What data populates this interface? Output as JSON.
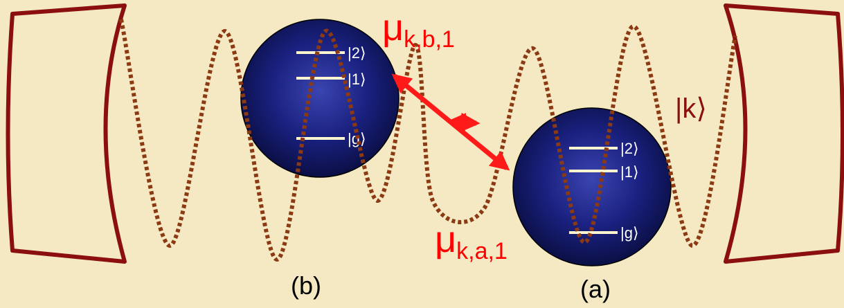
{
  "labels": {
    "mu_b": "μ",
    "mu_b_sub": "k,b,1",
    "mu_a": "μ",
    "mu_a_sub": "k,a,1",
    "cavity_mode": "|k⟩",
    "atom_b": "(b)",
    "atom_a": "(a)"
  },
  "atoms": {
    "b": {
      "levels": [
        "|2⟩",
        "|1⟩",
        "|g⟩"
      ]
    },
    "a": {
      "levels": [
        "|2⟩",
        "|1⟩",
        "|g⟩"
      ]
    }
  },
  "colors": {
    "background": "#f4e9c3",
    "mirror": "#8b0f0f",
    "wave": "#8b3a14",
    "atom": "#1a1a66",
    "level_line": "#fff6d0",
    "coupling_arrow": "#ff1a1a",
    "label_text": "#000000",
    "mu_text": "#ff0000",
    "ket_text": "#8b0f0f"
  }
}
